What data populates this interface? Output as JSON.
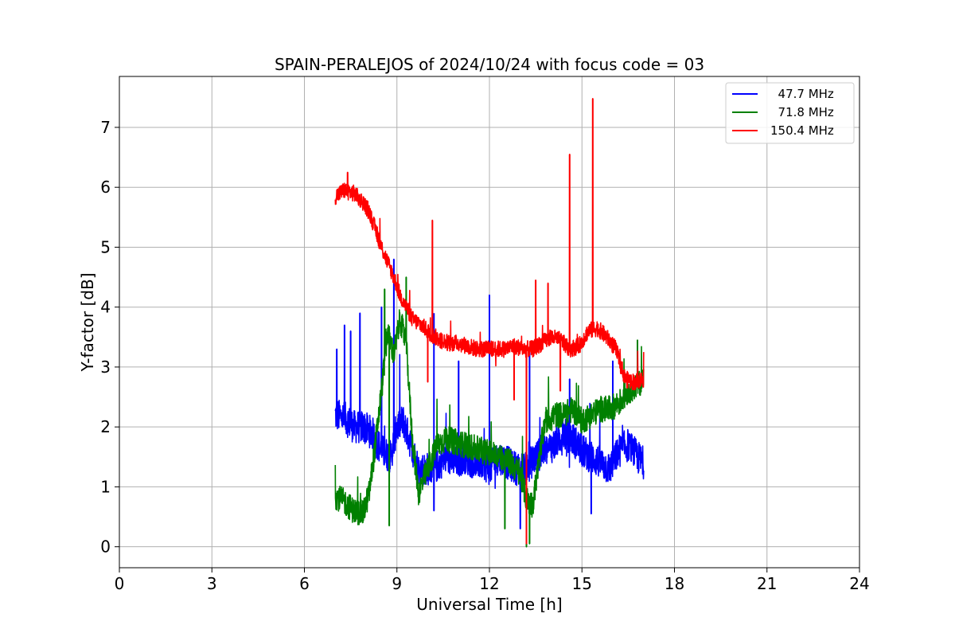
{
  "chart_data": {
    "type": "line",
    "title": "SPAIN-PERALEJOS of 2024/10/24 with focus code = 03",
    "xlabel": "Universal Time [h]",
    "ylabel": "Y-factor [dB]",
    "xlim": [
      0,
      24
    ],
    "ylim": [
      -0.35,
      7.85
    ],
    "xticks": [
      0,
      3,
      6,
      9,
      12,
      15,
      18,
      21,
      24
    ],
    "yticks": [
      0,
      1,
      2,
      3,
      4,
      5,
      6,
      7
    ],
    "grid": true,
    "legend_position": "top-right",
    "series": [
      {
        "name": "  47.7 MHz",
        "color": "#0000ff",
        "x": [
          7.0,
          7.3,
          7.6,
          7.9,
          8.2,
          8.5,
          8.8,
          9.0,
          9.2,
          9.4,
          9.7,
          10.0,
          10.3,
          10.6,
          10.9,
          11.2,
          11.5,
          11.8,
          12.0,
          12.3,
          12.6,
          12.9,
          13.2,
          13.5,
          13.8,
          14.1,
          14.4,
          14.7,
          15.0,
          15.3,
          15.6,
          15.9,
          16.2,
          16.5,
          16.8,
          17.0
        ],
        "y": [
          2.2,
          2.15,
          2.0,
          2.0,
          1.9,
          1.6,
          1.5,
          2.0,
          2.1,
          1.8,
          1.3,
          1.3,
          1.35,
          1.5,
          1.4,
          1.5,
          1.4,
          1.4,
          1.3,
          1.5,
          1.4,
          1.3,
          1.3,
          1.5,
          1.6,
          1.7,
          1.9,
          1.8,
          1.6,
          1.5,
          1.4,
          1.3,
          1.6,
          1.7,
          1.5,
          1.4
        ],
        "peaks": [
          {
            "x": 7.05,
            "y": 3.3
          },
          {
            "x": 7.3,
            "y": 3.7
          },
          {
            "x": 7.5,
            "y": 3.6
          },
          {
            "x": 7.8,
            "y": 3.9
          },
          {
            "x": 8.5,
            "y": 4.0
          },
          {
            "x": 8.9,
            "y": 4.8
          },
          {
            "x": 10.2,
            "y": 3.9
          },
          {
            "x": 12.0,
            "y": 4.2
          },
          {
            "x": 11.0,
            "y": 3.1
          },
          {
            "x": 13.3,
            "y": 3.3
          },
          {
            "x": 14.6,
            "y": 2.8
          },
          {
            "x": 16.0,
            "y": 3.1
          },
          {
            "x": 10.2,
            "y": 0.6
          },
          {
            "x": 13.0,
            "y": 0.3
          },
          {
            "x": 15.3,
            "y": 0.55
          }
        ]
      },
      {
        "name": "  71.8 MHz",
        "color": "#008000",
        "x": [
          7.0,
          7.3,
          7.6,
          7.9,
          8.1,
          8.3,
          8.5,
          8.7,
          8.9,
          9.1,
          9.3,
          9.5,
          9.7,
          10.0,
          10.3,
          10.6,
          10.9,
          11.2,
          11.5,
          11.8,
          12.1,
          12.4,
          12.7,
          13.0,
          13.2,
          13.4,
          13.6,
          13.8,
          14.1,
          14.4,
          14.7,
          15.0,
          15.3,
          15.6,
          15.9,
          16.2,
          16.5,
          16.8,
          17.0
        ],
        "y": [
          0.85,
          0.75,
          0.6,
          0.55,
          0.9,
          1.7,
          2.6,
          3.6,
          3.2,
          3.8,
          3.4,
          1.8,
          0.9,
          1.3,
          1.7,
          1.8,
          1.75,
          1.7,
          1.65,
          1.6,
          1.55,
          1.5,
          1.4,
          1.2,
          0.8,
          0.7,
          1.4,
          2.1,
          2.2,
          2.2,
          2.3,
          2.1,
          2.2,
          2.3,
          2.3,
          2.4,
          2.6,
          2.7,
          2.8
        ],
        "peaks": [
          {
            "x": 8.6,
            "y": 4.3
          },
          {
            "x": 9.3,
            "y": 4.5
          },
          {
            "x": 8.75,
            "y": 0.35
          },
          {
            "x": 13.2,
            "y": 0.0
          },
          {
            "x": 13.3,
            "y": 0.05
          },
          {
            "x": 16.8,
            "y": 3.45
          },
          {
            "x": 12.5,
            "y": 0.3
          }
        ]
      },
      {
        "name": "150.4 MHz",
        "color": "#ff0000",
        "x": [
          7.0,
          7.3,
          7.6,
          7.9,
          8.1,
          8.3,
          8.5,
          8.7,
          8.9,
          9.1,
          9.3,
          9.5,
          9.8,
          10.1,
          10.4,
          10.7,
          11.0,
          11.3,
          11.6,
          11.9,
          12.2,
          12.5,
          12.8,
          13.1,
          13.4,
          13.7,
          14.0,
          14.3,
          14.6,
          14.9,
          15.2,
          15.5,
          15.8,
          16.1,
          16.4,
          16.7,
          17.0
        ],
        "y": [
          5.85,
          5.95,
          5.9,
          5.75,
          5.6,
          5.3,
          5.0,
          4.75,
          4.5,
          4.2,
          4.0,
          3.8,
          3.7,
          3.55,
          3.45,
          3.4,
          3.4,
          3.35,
          3.3,
          3.3,
          3.3,
          3.3,
          3.35,
          3.3,
          3.3,
          3.4,
          3.5,
          3.45,
          3.3,
          3.35,
          3.6,
          3.65,
          3.5,
          3.3,
          2.8,
          2.75,
          2.8
        ],
        "peaks": [
          {
            "x": 7.4,
            "y": 6.25
          },
          {
            "x": 10.15,
            "y": 5.45
          },
          {
            "x": 13.5,
            "y": 4.45
          },
          {
            "x": 13.9,
            "y": 4.4
          },
          {
            "x": 14.6,
            "y": 6.55
          },
          {
            "x": 15.35,
            "y": 7.48
          },
          {
            "x": 10.0,
            "y": 2.75
          },
          {
            "x": 12.8,
            "y": 2.45
          },
          {
            "x": 13.2,
            "y": 0.05
          },
          {
            "x": 14.3,
            "y": 2.6
          }
        ]
      }
    ]
  }
}
